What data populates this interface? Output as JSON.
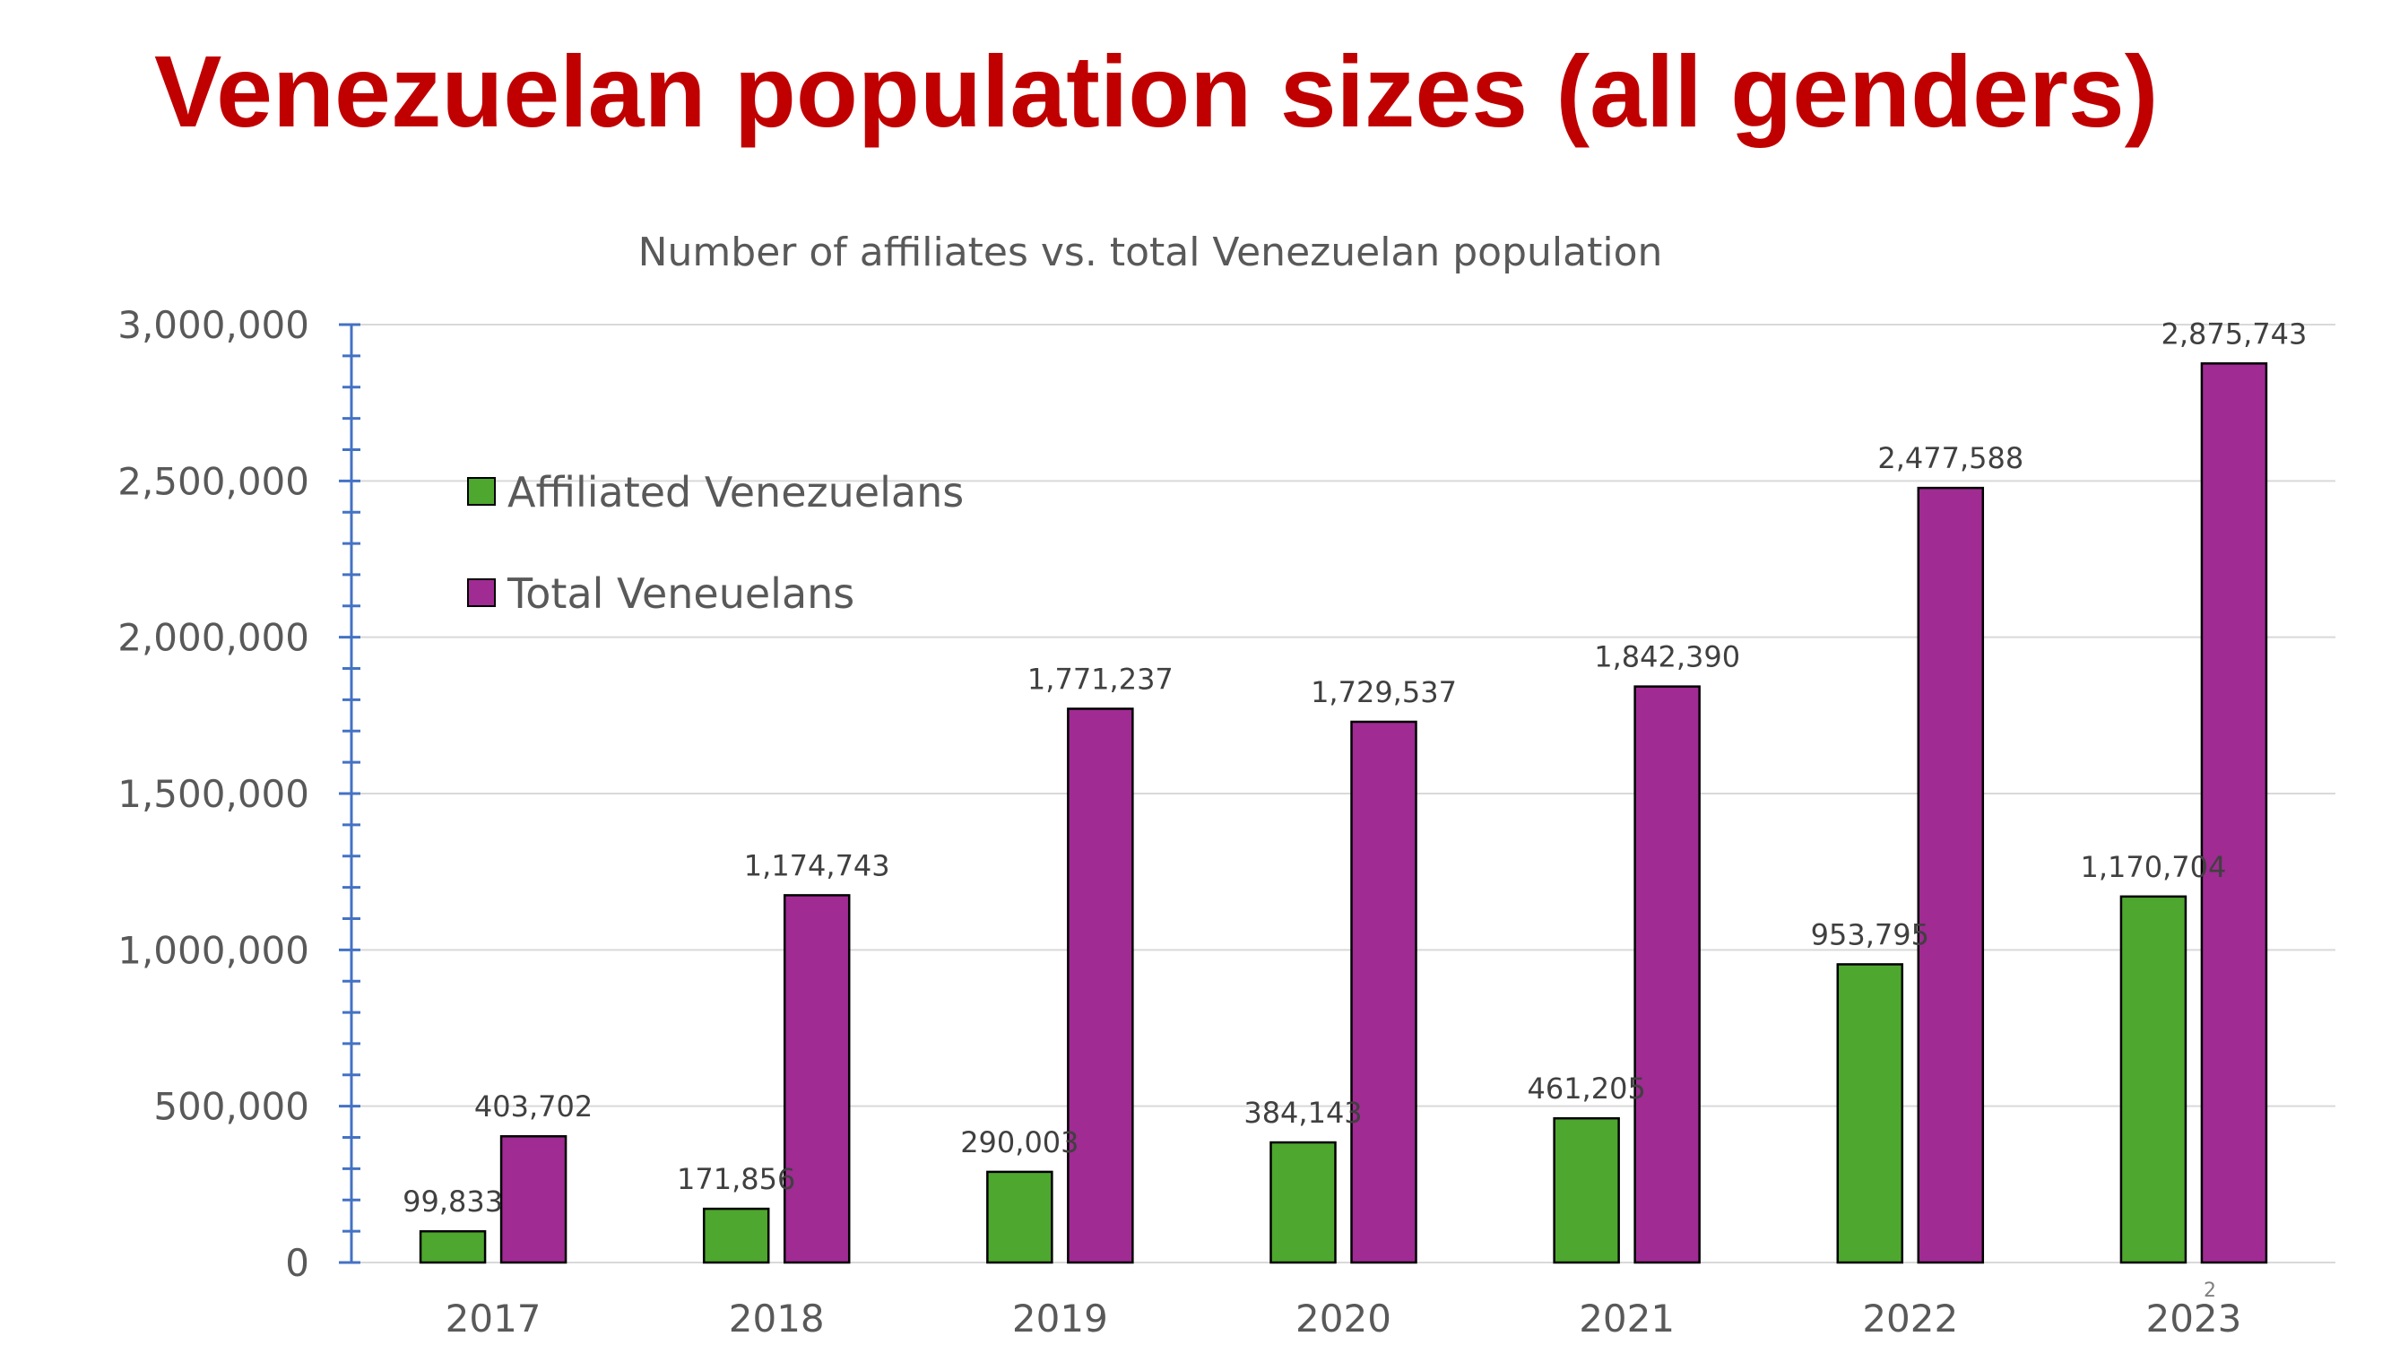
{
  "slide": {
    "title": "Venezuelan population sizes (all genders)",
    "page_number": "2"
  },
  "colors": {
    "title": "#c00000",
    "affiliated": "#4ea72e",
    "total": "#a02b93",
    "axis": "#4472c4",
    "grid": "#d9d9d9",
    "text": "#595959"
  },
  "chart_data": {
    "type": "bar",
    "title": "Number of affiliates vs. total Venezuelan population",
    "xlabel": "",
    "ylabel": "",
    "categories": [
      "2017",
      "2018",
      "2019",
      "2020",
      "2021",
      "2022",
      "2023"
    ],
    "series": [
      {
        "name": "Affiliated Venezuelans",
        "color": "#4ea72e",
        "values": [
          99833,
          171856,
          290003,
          384143,
          461205,
          953795,
          1170704
        ],
        "labels": [
          "99,833",
          "171,856",
          "290,003",
          "384,143",
          "461,205",
          "953,795",
          "1,170,704"
        ]
      },
      {
        "name": "Total Veneuelans",
        "color": "#a02b93",
        "values": [
          403702,
          1174743,
          1771237,
          1729537,
          1842390,
          2477588,
          2875743
        ],
        "labels": [
          "403,702",
          "1,174,743",
          "1,771,237",
          "1,729,537",
          "1,842,390",
          "2,477,588",
          "2,875,743"
        ]
      }
    ],
    "ylim": [
      0,
      3000000
    ],
    "yticks": [
      0,
      500000,
      1000000,
      1500000,
      2000000,
      2500000,
      3000000
    ],
    "ytick_labels": [
      "0",
      "500,000",
      "1,000,000",
      "1,500,000",
      "2,000,000",
      "2,500,000",
      "3,000,000"
    ],
    "grid": true,
    "legend_position": "top-left"
  }
}
